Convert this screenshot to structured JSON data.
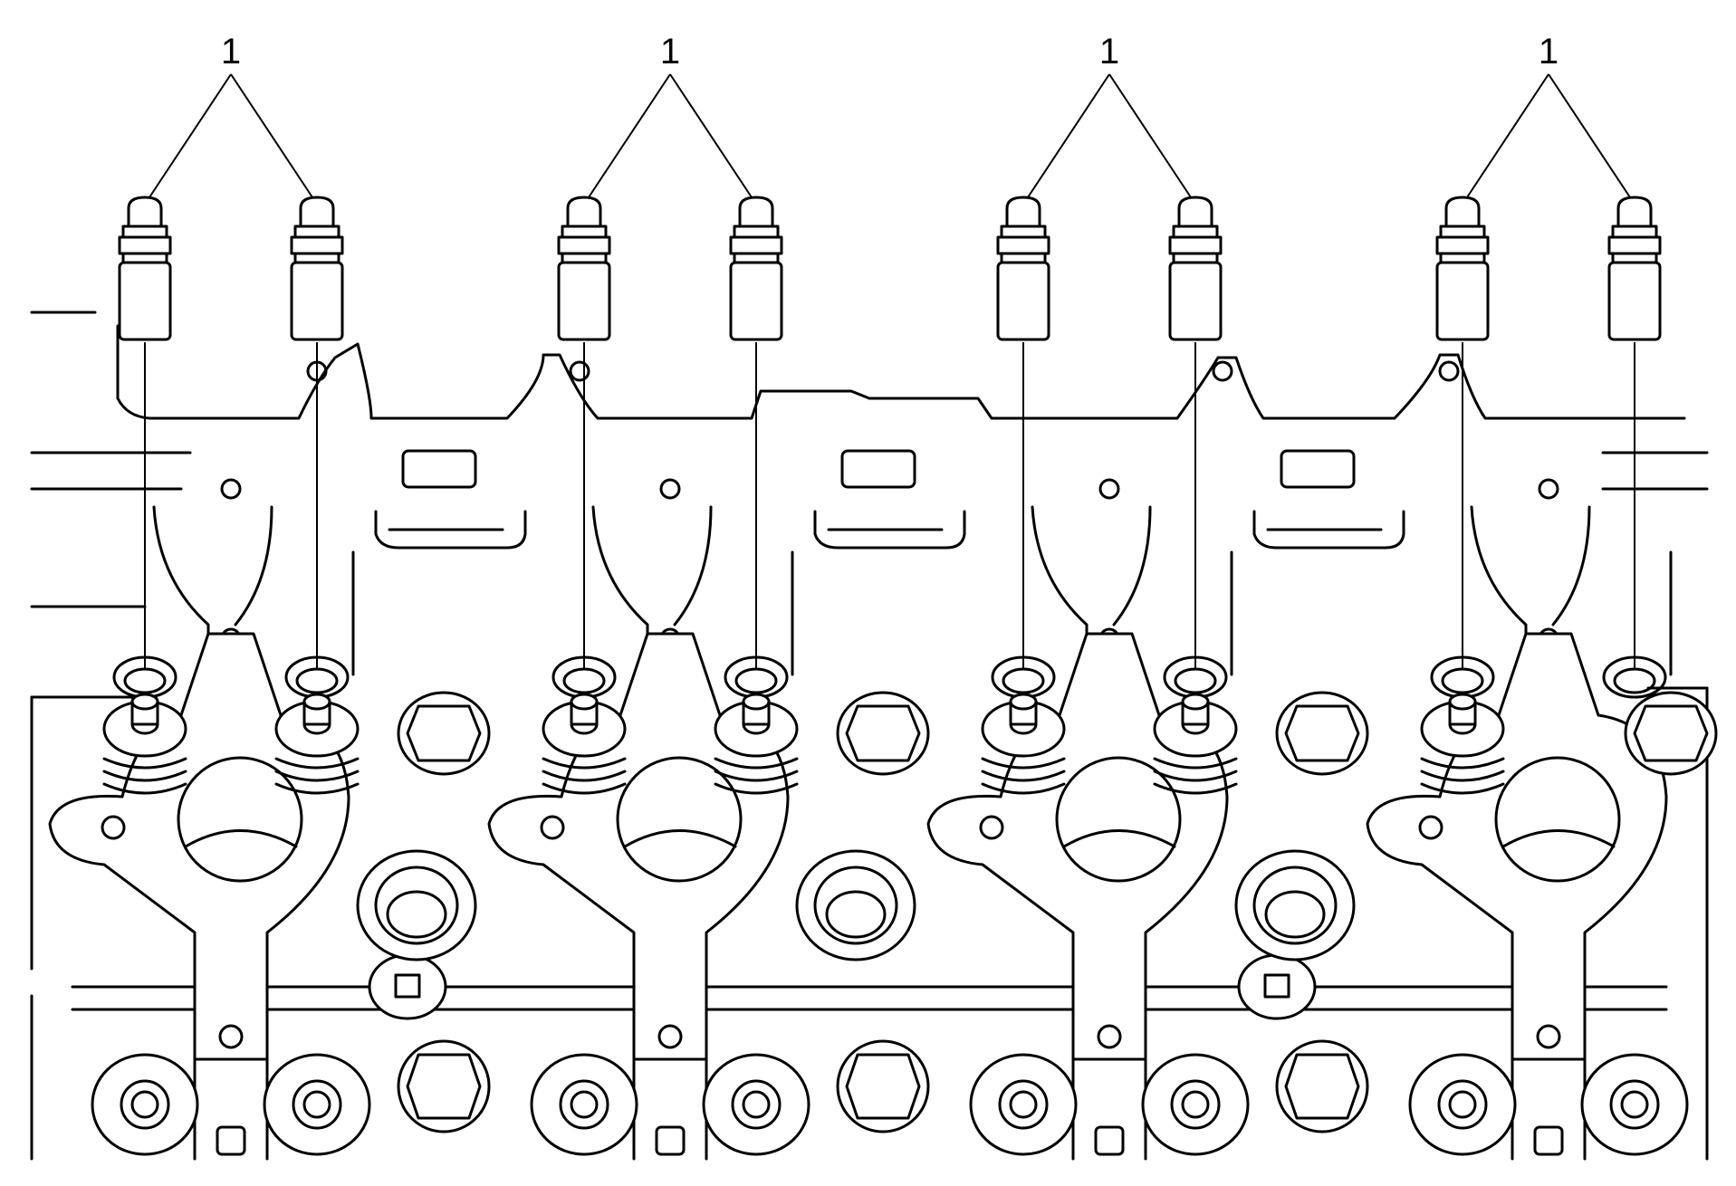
{
  "callouts": [
    {
      "label": "1"
    },
    {
      "label": "1"
    },
    {
      "label": "1"
    },
    {
      "label": "1"
    }
  ],
  "parts": {
    "lifters": 8,
    "lifter_icon": "valve-lifter-icon",
    "cylinder_head_icon": "cylinder-head-icon"
  },
  "colors": {
    "line": "#000000",
    "background": "#ffffff"
  }
}
